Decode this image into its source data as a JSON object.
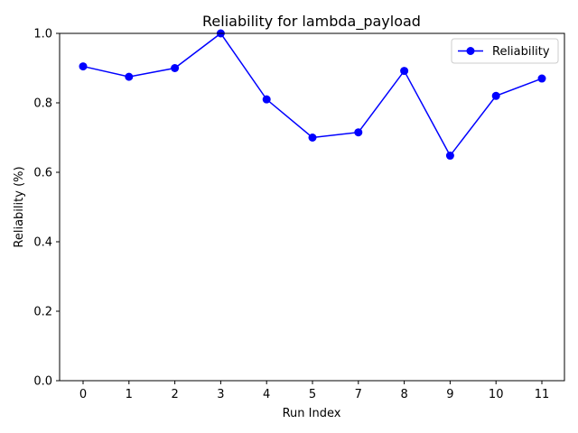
{
  "chart_data": {
    "type": "line",
    "title": "Reliability for lambda_payload",
    "xlabel": "Run Index",
    "ylabel": "Reliability (%)",
    "categories": [
      "0",
      "1",
      "2",
      "3",
      "4",
      "5",
      "7",
      "8",
      "9",
      "10",
      "11"
    ],
    "series": [
      {
        "name": "Reliability",
        "color": "#0000ff",
        "marker": "circle",
        "values": [
          0.905,
          0.875,
          0.9,
          1.0,
          0.81,
          0.7,
          0.715,
          0.892,
          0.648,
          0.82,
          0.87
        ]
      }
    ],
    "ylim": [
      0,
      1.0
    ],
    "yticks": [
      "0.0",
      "0.2",
      "0.4",
      "0.6",
      "0.8",
      "1.0"
    ],
    "grid": false,
    "legend_position": "top-right"
  }
}
